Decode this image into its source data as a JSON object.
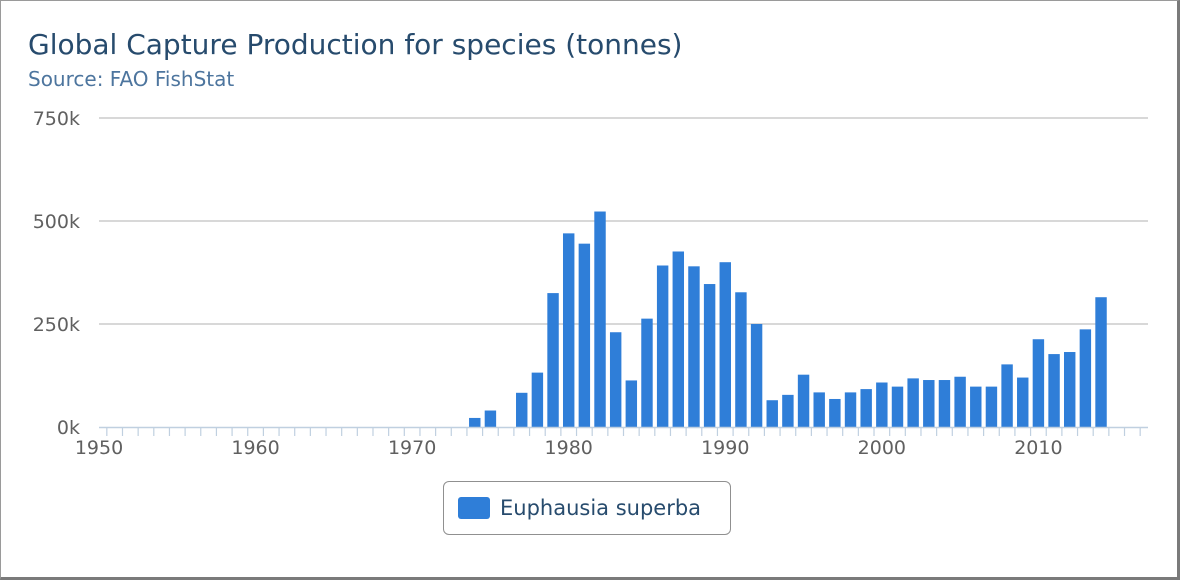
{
  "header": {
    "title": "Global Capture Production for species (tonnes)",
    "subtitle": "Source: FAO FishStat"
  },
  "colors": {
    "series": "#2f7ed8",
    "title": "#274b6d",
    "subtitle": "#4d759e",
    "gridline": "#c0c0c0",
    "axis": "#c0d0e0",
    "tick_label": "#606060"
  },
  "chart_data": {
    "type": "bar",
    "title": "Global Capture Production for species (tonnes)",
    "subtitle": "Source: FAO FishStat",
    "xlabel": "",
    "ylabel": "",
    "xlim": [
      1950,
      2017
    ],
    "ylim": [
      0,
      750000
    ],
    "x_ticks": [
      "1950",
      "1960",
      "1970",
      "1980",
      "1990",
      "2000",
      "2010"
    ],
    "y_ticks": [
      "0k",
      "250k",
      "500k",
      "750k"
    ],
    "grid": true,
    "legend_position": "bottom-center",
    "series": [
      {
        "name": "Euphausia superba",
        "years": [
          1974,
          1975,
          1977,
          1978,
          1979,
          1980,
          1981,
          1982,
          1983,
          1984,
          1985,
          1986,
          1987,
          1988,
          1989,
          1990,
          1991,
          1992,
          1993,
          1994,
          1995,
          1996,
          1997,
          1998,
          1999,
          2000,
          2001,
          2002,
          2003,
          2004,
          2005,
          2006,
          2007,
          2008,
          2009,
          2010,
          2011,
          2012,
          2013,
          2014
        ],
        "values": [
          22000,
          40000,
          83000,
          132000,
          325000,
          470000,
          445000,
          523000,
          230000,
          113000,
          263000,
          392000,
          426000,
          390000,
          347000,
          400000,
          327000,
          250000,
          65000,
          78000,
          127000,
          84000,
          68000,
          84000,
          92000,
          108000,
          98000,
          118000,
          114000,
          114000,
          122000,
          98000,
          98000,
          152000,
          120000,
          213000,
          177000,
          182000,
          237000,
          315000
        ]
      }
    ]
  }
}
